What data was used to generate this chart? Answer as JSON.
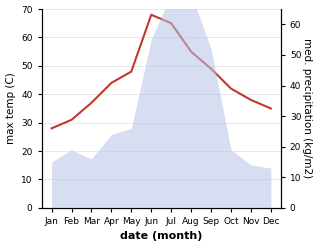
{
  "months": [
    "Jan",
    "Feb",
    "Mar",
    "Apr",
    "May",
    "Jun",
    "Jul",
    "Aug",
    "Sep",
    "Oct",
    "Nov",
    "Dec"
  ],
  "temperature": [
    28,
    31,
    37,
    44,
    48,
    68,
    65,
    55,
    49,
    42,
    38,
    35
  ],
  "precipitation": [
    15,
    19,
    16,
    24,
    26,
    55,
    70,
    70,
    52,
    19,
    14,
    13
  ],
  "temp_color": "#c0392b",
  "precip_color": "#b8c4e8",
  "temp_ylim": [
    0,
    70
  ],
  "precip_ylim": [
    0,
    65
  ],
  "xlabel": "date (month)",
  "ylabel_left": "max temp (C)",
  "ylabel_right": "med. precipitation (kg/m2)",
  "xlabel_fontsize": 8,
  "ylabel_fontsize": 7.5,
  "tick_fontsize": 6.5,
  "left_yticks": [
    0,
    10,
    20,
    30,
    40,
    50,
    60,
    70
  ],
  "right_yticks": [
    0,
    10,
    20,
    30,
    40,
    50,
    60
  ],
  "figwidth": 3.18,
  "figheight": 2.47,
  "dpi": 100
}
